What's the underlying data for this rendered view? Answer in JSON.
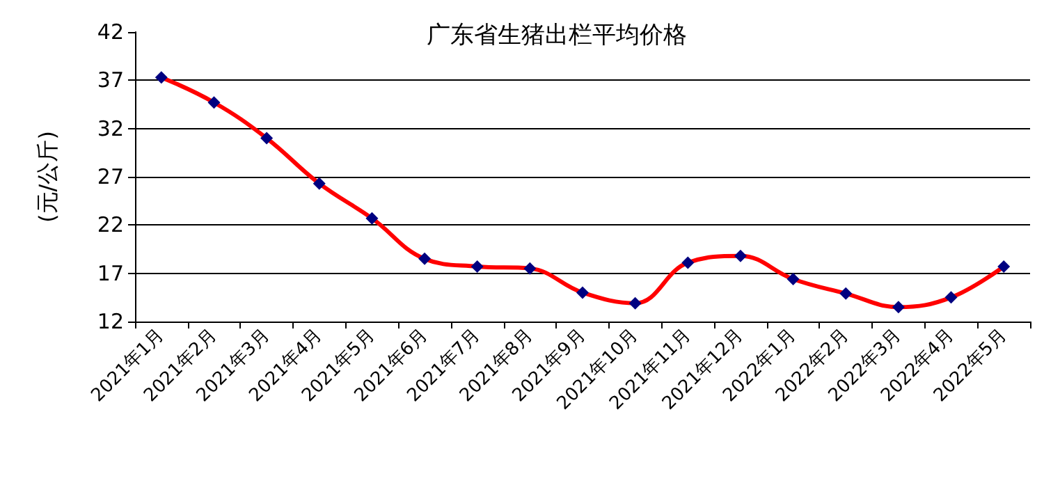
{
  "chart_data": {
    "type": "line",
    "title": "广东省生猪出栏平均价格",
    "ylabel": "(元/公斤)",
    "categories": [
      "2021年1月",
      "2021年2月",
      "2021年3月",
      "2021年4月",
      "2021年5月",
      "2021年6月",
      "2021年7月",
      "2021年8月",
      "2021年9月",
      "2021年10月",
      "2021年11月",
      "2021年12月",
      "2022年1月",
      "2022年2月",
      "2022年3月",
      "2022年4月",
      "2022年5月"
    ],
    "series": [
      {
        "color": "#ff0000",
        "values": [
          37.3,
          34.7,
          31.0,
          26.3,
          22.7,
          18.5,
          17.7,
          17.5,
          15.0,
          13.9,
          18.1,
          18.8,
          16.4,
          14.9,
          13.5,
          14.5,
          17.7
        ]
      }
    ],
    "ylim": [
      12,
      42
    ],
    "yticks": [
      12,
      17,
      22,
      27,
      32,
      37,
      42
    ],
    "grid": "y",
    "marker": "diamond",
    "line_style": "solid"
  }
}
